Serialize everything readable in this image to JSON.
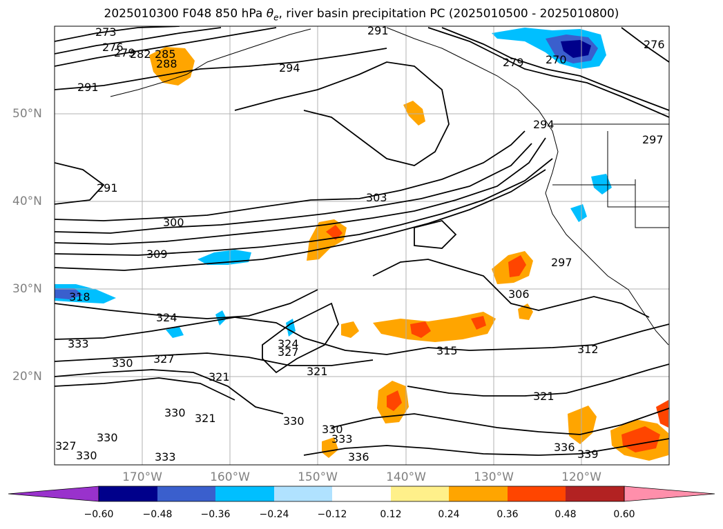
{
  "title": {
    "prefix": "2025010300 F048 850 hPa ",
    "theta_symbol": "θ",
    "theta_sub": "e",
    "suffix": ", river basin precipitation PC (2025010500 - 2025010800)"
  },
  "lat_labels": [
    "50°N",
    "40°N",
    "30°N",
    "20°N"
  ],
  "lon_labels": [
    "170°W",
    "160°W",
    "150°W",
    "140°W",
    "130°W",
    "120°W"
  ],
  "contour_labels": [
    "273",
    "276",
    "279",
    "282",
    "285",
    "288",
    "291",
    "294",
    "291",
    "291",
    "300",
    "303",
    "309",
    "318",
    "324",
    "333",
    "330",
    "327",
    "324",
    "321",
    "327",
    "321",
    "315",
    "312",
    "321",
    "306",
    "297",
    "294",
    "297",
    "276",
    "270",
    "279",
    "330",
    "330",
    "333",
    "330",
    "321",
    "336",
    "333",
    "339",
    "336",
    "330",
    "327",
    "330"
  ],
  "colorbar": {
    "ticks": [
      "−0.60",
      "−0.48",
      "−0.36",
      "−0.24",
      "−0.12",
      "0.12",
      "0.24",
      "0.36",
      "0.48",
      "0.60"
    ],
    "colors": [
      "#9932cc",
      "#00008b",
      "#3a5fcd",
      "#00bfff",
      "#b0e2ff",
      "#ffffff",
      "#fff08a",
      "#ffa500",
      "#ff4500",
      "#b22222",
      "#ff8fab"
    ]
  }
}
